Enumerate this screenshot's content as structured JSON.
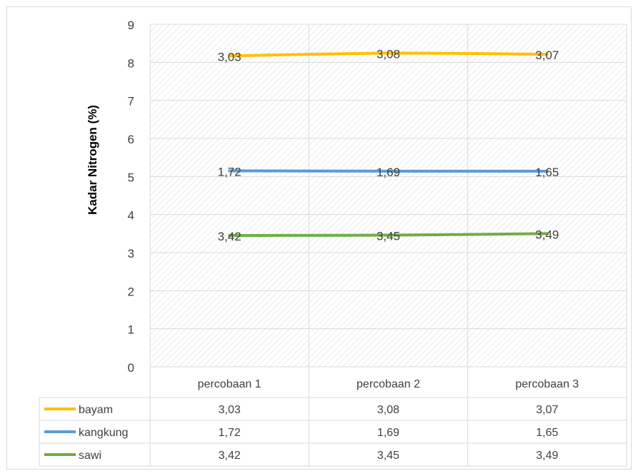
{
  "chart_data": {
    "type": "line",
    "title": "",
    "xlabel": "",
    "ylabel": "Kadar Nitrogen (%)",
    "ylim": [
      0,
      9
    ],
    "yticks": [
      "0",
      "1",
      "2",
      "3",
      "4",
      "5",
      "6",
      "7",
      "8",
      "9"
    ],
    "categories": [
      "percobaan 1",
      "percobaan 2",
      "percobaan 3"
    ],
    "grid": true,
    "legend": "data table",
    "series": [
      {
        "name": "bayam",
        "color": "#FFC000",
        "plotted": [
          8.17,
          8.24,
          8.21
        ],
        "labels": [
          "3,03",
          "3,08",
          "3,07"
        ]
      },
      {
        "name": "kangkung",
        "color": "#5B9BD5",
        "plotted": [
          5.15,
          5.14,
          5.14
        ],
        "labels": [
          "1,72",
          "1,69",
          "1,65"
        ]
      },
      {
        "name": "sawi",
        "color": "#70AD47",
        "plotted": [
          3.45,
          3.46,
          3.5
        ],
        "labels": [
          "3,42",
          "3,45",
          "3,49"
        ]
      }
    ]
  }
}
